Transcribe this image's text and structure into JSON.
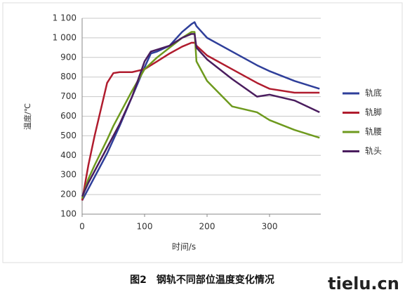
{
  "chart_data": {
    "type": "line",
    "xlabel": "时间/s",
    "ylabel": "温度/℃",
    "caption": "图2　钢轨不同部位温度变化情况",
    "watermark": "tielu.cn",
    "x": [
      0,
      10,
      20,
      40,
      50,
      60,
      80,
      100,
      110,
      120,
      140,
      160,
      175,
      180,
      183,
      200,
      240,
      280,
      300,
      340,
      380
    ],
    "series": [
      {
        "name": "轨底",
        "color": "#2f3f9a",
        "values": [
          170,
          230,
          290,
          410,
          480,
          550,
          700,
          850,
          920,
          930,
          960,
          1030,
          1070,
          1080,
          1060,
          1000,
          930,
          860,
          830,
          780,
          740
        ]
      },
      {
        "name": "轨脚",
        "color": "#b01c2e",
        "values": [
          170,
          350,
          500,
          770,
          820,
          825,
          825,
          840,
          860,
          880,
          920,
          955,
          975,
          975,
          960,
          910,
          840,
          770,
          740,
          720,
          720
        ]
      },
      {
        "name": "轨腰",
        "color": "#6e9a1e",
        "values": [
          180,
          280,
          350,
          480,
          550,
          610,
          730,
          840,
          870,
          900,
          950,
          1000,
          1030,
          1030,
          880,
          780,
          650,
          620,
          580,
          530,
          490
        ]
      },
      {
        "name": "轨头",
        "color": "#4a1d5e",
        "values": [
          190,
          260,
          320,
          440,
          500,
          560,
          700,
          880,
          930,
          940,
          960,
          1000,
          1020,
          1020,
          950,
          890,
          790,
          700,
          710,
          680,
          620
        ]
      }
    ],
    "xlim": [
      0,
      382
    ],
    "xticks": [
      0,
      100,
      200,
      300
    ],
    "ylim": [
      100,
      1100
    ],
    "yticks": [
      100,
      200,
      300,
      400,
      500,
      600,
      700,
      800,
      900,
      {
        "value": 1000,
        "label": "1 000"
      },
      {
        "value": 1100,
        "label": "1 100"
      }
    ],
    "grid": true
  }
}
